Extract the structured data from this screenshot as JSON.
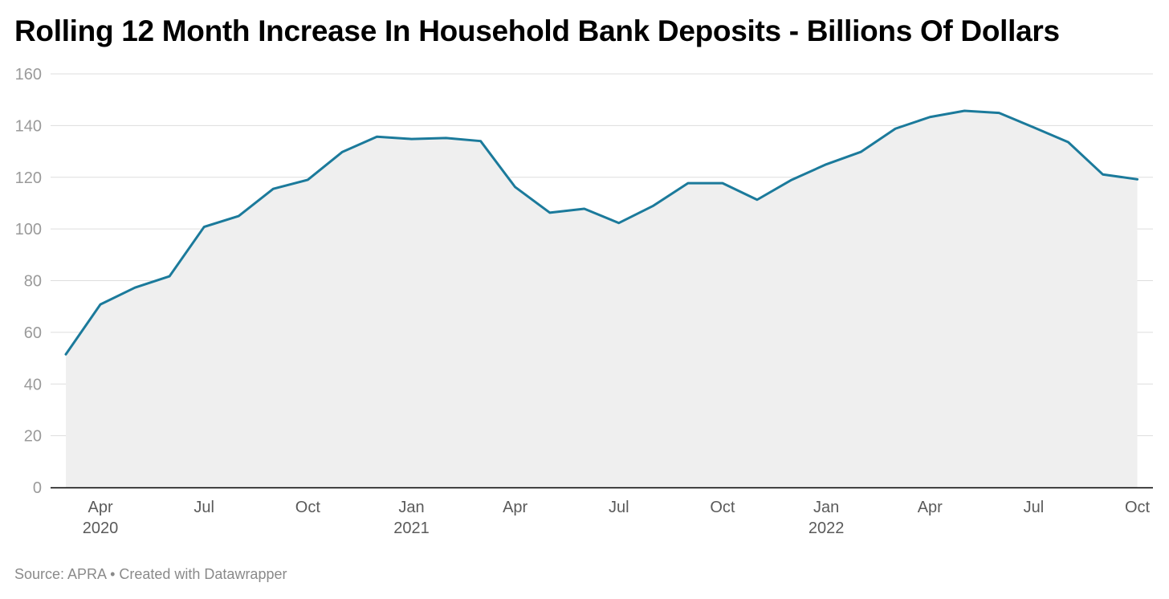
{
  "title": "Rolling 12 Month Increase In Household Bank Deposits - Billions Of Dollars",
  "source": "Source: APRA • Created with Datawrapper",
  "colors": {
    "line": "#1b7a9b",
    "area": "#efefef",
    "grid": "#dddddd",
    "axis": "#000000"
  },
  "chart_data": {
    "type": "area",
    "title": "Rolling 12 Month Increase In Household Bank Deposits - Billions Of Dollars",
    "x_type": "monthly dates",
    "ylim": [
      0,
      160
    ],
    "yticks": [
      0,
      20,
      40,
      60,
      80,
      100,
      120,
      140,
      160
    ],
    "xticks": [
      {
        "date": "2020-04",
        "label": "Apr",
        "year": "2020"
      },
      {
        "date": "2020-07",
        "label": "Jul",
        "year": ""
      },
      {
        "date": "2020-10",
        "label": "Oct",
        "year": ""
      },
      {
        "date": "2021-01",
        "label": "Jan",
        "year": "2021"
      },
      {
        "date": "2021-04",
        "label": "Apr",
        "year": ""
      },
      {
        "date": "2021-07",
        "label": "Jul",
        "year": ""
      },
      {
        "date": "2021-10",
        "label": "Oct",
        "year": ""
      },
      {
        "date": "2022-01",
        "label": "Jan",
        "year": "2022"
      },
      {
        "date": "2022-04",
        "label": "Apr",
        "year": ""
      },
      {
        "date": "2022-07",
        "label": "Jul",
        "year": ""
      },
      {
        "date": "2022-10",
        "label": "Oct",
        "year": ""
      }
    ],
    "grid": true,
    "series": [
      {
        "x": [
          "2020-03",
          "2020-04",
          "2020-05",
          "2020-06",
          "2020-07",
          "2020-08",
          "2020-09",
          "2020-10",
          "2020-11",
          "2020-12",
          "2021-01",
          "2021-02",
          "2021-03",
          "2021-04",
          "2021-05",
          "2021-06",
          "2021-07",
          "2021-08",
          "2021-09",
          "2021-10",
          "2021-11",
          "2021-12",
          "2022-01",
          "2022-02",
          "2022-03",
          "2022-04",
          "2022-05",
          "2022-06",
          "2022-07",
          "2022-08",
          "2022-09",
          "2022-10"
        ],
        "values": [
          51.5,
          70.8,
          77.3,
          81.7,
          100.8,
          105.0,
          115.5,
          119.0,
          129.8,
          135.7,
          134.8,
          135.2,
          134.0,
          116.2,
          106.3,
          107.8,
          102.3,
          109.0,
          117.7,
          117.7,
          111.3,
          119.0,
          125.0,
          129.8,
          138.8,
          143.3,
          145.7,
          144.9,
          139.3,
          133.6,
          121.1,
          119.2
        ]
      }
    ]
  }
}
